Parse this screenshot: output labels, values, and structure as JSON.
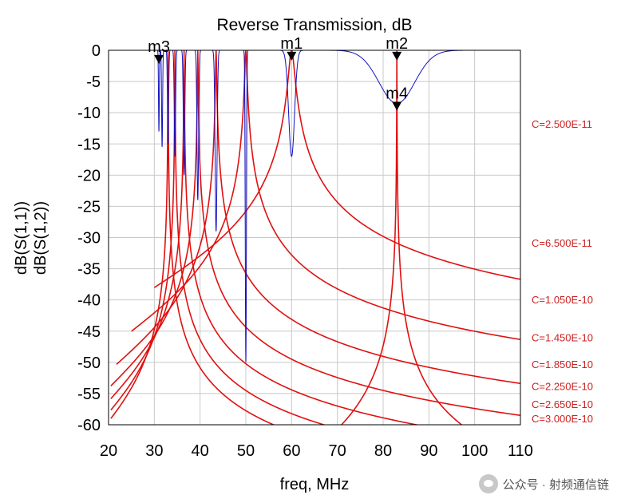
{
  "chart_data": {
    "type": "line",
    "title": "Reverse Transmission, dB",
    "xlabel": "freq, MHz",
    "ylabels": [
      {
        "text": "dB(S(1,1))",
        "color": "#1010c0"
      },
      {
        "text": "dB(S(1,2))",
        "color": "#e01010"
      }
    ],
    "xlim": [
      20,
      110
    ],
    "ylim": [
      -60,
      0
    ],
    "xticks": [
      20,
      30,
      40,
      50,
      60,
      70,
      80,
      90,
      100,
      110
    ],
    "yticks": [
      0,
      -5,
      -10,
      -15,
      -20,
      -25,
      -30,
      -35,
      -40,
      -45,
      -50,
      -55,
      -60
    ],
    "grid": true,
    "colors": {
      "s12": "#e01010",
      "s11": "#1010c0",
      "label": "#cc2020"
    },
    "series": [
      {
        "name": "C=2.500E-11",
        "label_y": -11.8,
        "f0": 83,
        "floor": -70
      },
      {
        "name": "C=6.500E-11",
        "label_y": -30.8,
        "f0": 60,
        "floor": -34.5
      },
      {
        "name": "C=1.050E-10",
        "label_y": -39.9,
        "f0": 50,
        "floor": -41.5
      },
      {
        "name": "C=1.450E-10",
        "label_y": -46.0,
        "f0": 43.5,
        "floor": -46.8
      },
      {
        "name": "C=1.850E-10",
        "label_y": -50.3,
        "f0": 39.5,
        "floor": -50.8
      },
      {
        "name": "C=2.250E-10",
        "label_y": -53.8,
        "f0": 36.5,
        "floor": -54.1
      },
      {
        "name": "C=2.650E-10",
        "label_y": -56.7,
        "f0": 34.5,
        "floor": -56.9
      },
      {
        "name": "C=3.000E-10",
        "label_y": -59.0,
        "f0": 33,
        "floor": -59.1
      }
    ],
    "markers": [
      {
        "label": "m1",
        "x": 60,
        "y": -0.5
      },
      {
        "label": "m2",
        "x": 83,
        "y": -0.5
      },
      {
        "label": "m3",
        "x": 31,
        "y": -1.0
      },
      {
        "label": "m4",
        "x": 83,
        "y": -8.5
      }
    ],
    "s11_dips": [
      {
        "f": 83,
        "depth": -8.5,
        "bw": 5.5
      },
      {
        "f": 60,
        "depth": -17,
        "bw": 0.9
      },
      {
        "f": 50,
        "depth": -50,
        "bw": 0.18
      },
      {
        "f": 43.5,
        "depth": -29,
        "bw": 0.3
      },
      {
        "f": 39.5,
        "depth": -24,
        "bw": 0.25
      },
      {
        "f": 36.5,
        "depth": -20,
        "bw": 0.22
      },
      {
        "f": 34.5,
        "depth": -17,
        "bw": 0.2
      },
      {
        "f": 33,
        "depth": -15,
        "bw": 0.18
      },
      {
        "f": 31.7,
        "depth": -15.5,
        "bw": 0.15
      },
      {
        "f": 31,
        "depth": -13,
        "bw": 0.12
      }
    ]
  },
  "watermark": {
    "text": "公众号 · 射频通信链"
  }
}
